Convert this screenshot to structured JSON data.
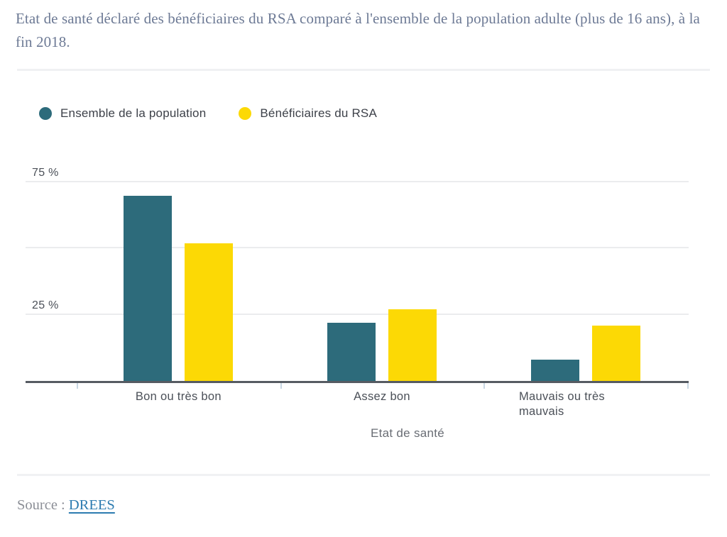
{
  "page": {
    "title": "Etat de santé déclaré des bénéficiaires du RSA comparé à l'ensemble de la population adulte (plus de 16 ans), à la fin 2018.",
    "source_label": "Source :",
    "source_link": "DREES"
  },
  "chart_data": {
    "type": "bar",
    "title": "Etat de santé déclaré des bénéficiaires du RSA comparé à l'ensemble de la population adulte (plus de 16 ans), à la fin 2018.",
    "categories": [
      "Bon ou très bon",
      "Assez bon",
      "Mauvais ou très mauvais"
    ],
    "series": [
      {
        "name": "Ensemble de la population",
        "color": "#2d6b7b",
        "values": [
          70,
          22,
          8
        ]
      },
      {
        "name": "Bénéficiaires du RSA",
        "color": "#fcd905",
        "values": [
          52,
          27,
          21
        ]
      }
    ],
    "unit": "%",
    "yticks": [
      {
        "value": 75,
        "label": "75 %"
      },
      {
        "value": 25,
        "label": "25 %"
      }
    ],
    "gridline_values": [
      75,
      50,
      25
    ],
    "ylim": [
      0,
      80.4
    ],
    "xlabel": "Etat de santé",
    "legend_position": "top",
    "grid": true,
    "source": "DREES"
  }
}
